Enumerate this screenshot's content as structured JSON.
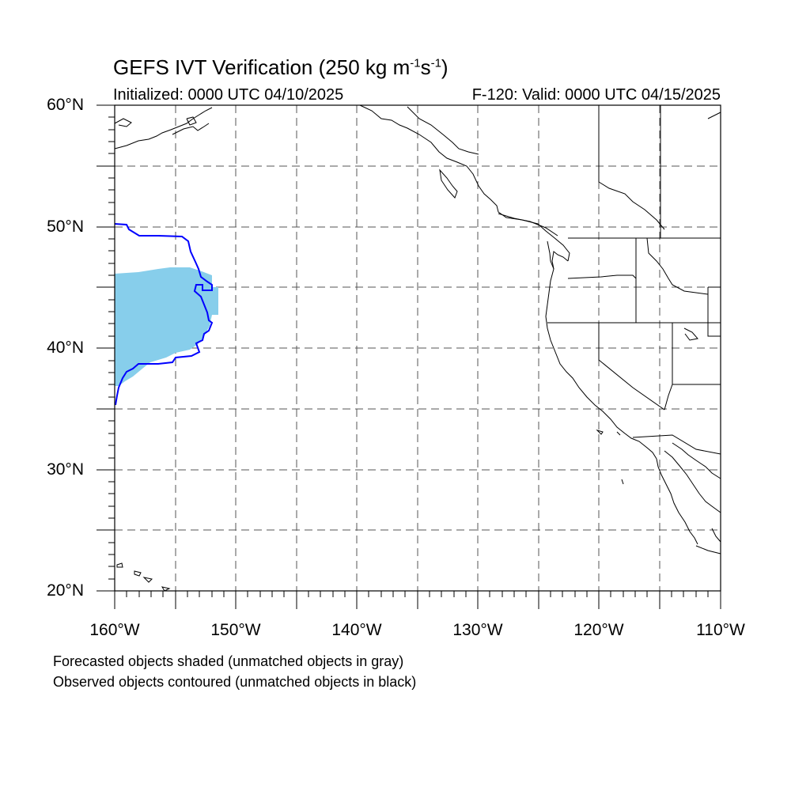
{
  "title": {
    "main": "GEFS IVT Verification (250 kg m",
    "exp1": "-1",
    "mid": "s",
    "exp2": "-1",
    "end": ")"
  },
  "subtitle": {
    "left": "Initialized: 0000 UTC 04/10/2025",
    "right": "F-120: Valid: 0000 UTC 04/15/2025"
  },
  "axes": {
    "lat_labels": [
      "60°N",
      "50°N",
      "40°N",
      "30°N",
      "20°N"
    ],
    "lon_labels": [
      "160°W",
      "150°W",
      "140°W",
      "130°W",
      "120°W",
      "110°W"
    ],
    "lat_range": [
      20,
      60
    ],
    "lon_range": [
      -160,
      -110
    ]
  },
  "captions": {
    "forecast": "Forecasted objects shaded (unmatched objects in gray)",
    "observed": "Observed objects contoured (unmatched objects in black)"
  },
  "colors": {
    "forecast_fill": "#87ceeb",
    "observed_contour": "#0000ff",
    "coastline": "#000000",
    "gridline": "#555555"
  }
}
